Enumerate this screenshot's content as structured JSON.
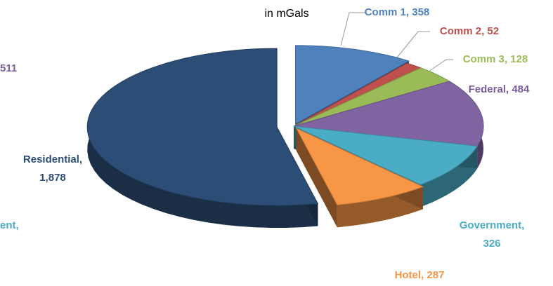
{
  "chart_data": {
    "type": "pie",
    "title": "in mGals",
    "values": [
      358,
      52,
      128,
      484,
      326,
      287,
      1878
    ],
    "value_labels": [
      "Comm 1,  358",
      "Comm 2,  52",
      "Comm 3,  128",
      "Federal,  484",
      "Government, 326",
      "Hotel,  287",
      "Residential, 1,878"
    ],
    "colors": [
      "#4f81bd",
      "#c0504d",
      "#9bbb59",
      "#8064a2",
      "#4bacc6",
      "#f79646",
      "#2c4d75"
    ],
    "annotations": [
      "511",
      "ent,"
    ]
  }
}
